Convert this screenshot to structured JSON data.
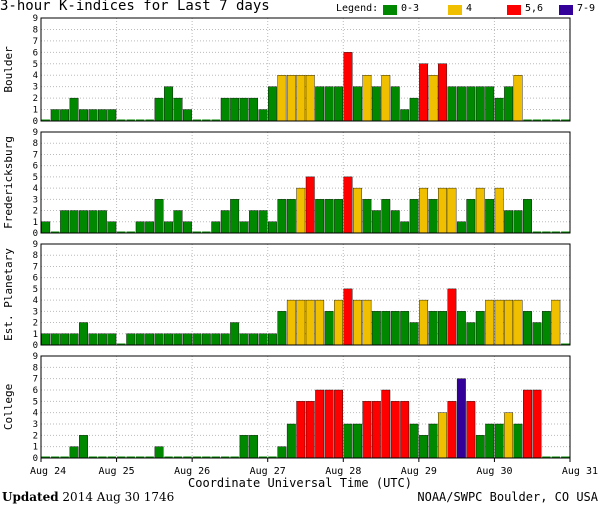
{
  "title": "3-hour K-indices for Last 7 days",
  "legend": {
    "label": "Legend:",
    "items": [
      {
        "label": "0-3",
        "color": "#008800"
      },
      {
        "label": "4",
        "color": "#f0c000"
      },
      {
        "label": "5,6",
        "color": "#ff0000"
      },
      {
        "label": "7-9",
        "color": "#330099"
      }
    ]
  },
  "footer": {
    "updated_label": "Updated",
    "updated_value": "2014 Aug 30 1746",
    "source": "NOAA/SWPC Boulder, CO USA"
  },
  "chart_data": {
    "type": "bar",
    "xlabel": "Coordinate Universal Time (UTC)",
    "x_ticks": [
      "Aug 24",
      "Aug 25",
      "Aug 26",
      "Aug 27",
      "Aug 28",
      "Aug 29",
      "Aug 30",
      "Aug 31"
    ],
    "ylim": [
      0,
      9
    ],
    "y_ticks": [
      0,
      1,
      2,
      3,
      4,
      5,
      6,
      7,
      8,
      9
    ],
    "grid": true,
    "intervals_per_day": 8,
    "series": [
      {
        "name": "Boulder",
        "values": [
          0,
          1,
          1,
          2,
          1,
          1,
          1,
          1,
          0,
          0,
          0,
          0,
          2,
          3,
          2,
          1,
          0,
          0,
          0,
          2,
          2,
          2,
          2,
          1,
          3,
          4,
          4,
          4,
          4,
          3,
          3,
          3,
          6,
          3,
          4,
          3,
          4,
          3,
          1,
          2,
          5,
          4,
          5,
          3,
          3,
          3,
          3,
          3,
          2,
          3,
          4,
          0,
          0,
          0,
          0,
          0
        ]
      },
      {
        "name": "Fredericksburg",
        "values": [
          1,
          0,
          2,
          2,
          2,
          2,
          2,
          1,
          0,
          0,
          1,
          1,
          3,
          1,
          2,
          1,
          0,
          0,
          1,
          2,
          3,
          1,
          2,
          2,
          1,
          3,
          3,
          4,
          5,
          3,
          3,
          3,
          5,
          4,
          3,
          2,
          3,
          2,
          1,
          3,
          4,
          3,
          4,
          4,
          1,
          3,
          4,
          3,
          4,
          2,
          2,
          3,
          0,
          0,
          0,
          0
        ]
      },
      {
        "name": "Est. Planetary",
        "values": [
          1,
          1,
          1,
          1,
          2,
          1,
          1,
          1,
          0,
          1,
          1,
          1,
          1,
          1,
          1,
          1,
          1,
          1,
          1,
          1,
          2,
          1,
          1,
          1,
          1,
          3,
          4,
          4,
          4,
          4,
          3,
          4,
          5,
          4,
          4,
          3,
          3,
          3,
          3,
          2,
          4,
          3,
          3,
          5,
          3,
          2,
          3,
          4,
          4,
          4,
          4,
          3,
          2,
          3,
          4,
          0
        ]
      },
      {
        "name": "College",
        "values": [
          0,
          0,
          0,
          1,
          2,
          0,
          0,
          0,
          0,
          0,
          0,
          0,
          1,
          0,
          0,
          0,
          0,
          0,
          0,
          0,
          0,
          2,
          2,
          0,
          0,
          1,
          3,
          5,
          5,
          6,
          6,
          6,
          3,
          3,
          5,
          5,
          6,
          5,
          5,
          3,
          2,
          3,
          4,
          5,
          7,
          5,
          2,
          3,
          3,
          4,
          3,
          6,
          6,
          0,
          0,
          0
        ]
      }
    ]
  }
}
